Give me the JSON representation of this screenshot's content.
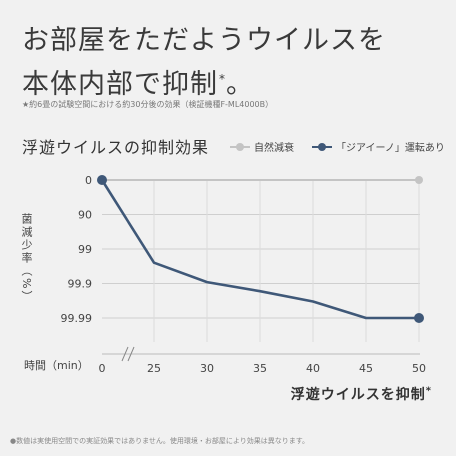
{
  "headline": {
    "line1": "お部屋をただようウイルスを",
    "line2": "本体内部で抑制",
    "line2_mark": "*",
    "line2_end": "。"
  },
  "footnote_top": "★約6畳の試験空間における約30分後の効果（検証機種F-ML4000B）",
  "chart_title": "浮遊ウイルスの抑制効果",
  "legend": [
    {
      "label": "自然減衰",
      "color": "#c4c4c4"
    },
    {
      "label": "「ジアイーノ」運転あり",
      "color": "#3f5878"
    }
  ],
  "y_axis_label": "菌減少率（%）",
  "x_axis_label": "時間（min）",
  "caption": "浮遊ウイルスを抑制",
  "caption_mark": "*",
  "footnote_bottom": "●数値は実使用空間での実証効果ではありません。使用環境・お部屋により効果は異なります。",
  "chart_data": {
    "type": "line",
    "x_ticks": [
      0,
      25,
      30,
      35,
      40,
      45,
      50
    ],
    "x_axis_break_between": [
      0,
      25
    ],
    "y_tick_labels": [
      "0",
      "90",
      "99",
      "99.9",
      "99.99"
    ],
    "y_scale": "log10 reduction",
    "series": [
      {
        "name": "自然減衰",
        "color": "#c4c4c4",
        "points": [
          {
            "x": 0,
            "y": "0"
          },
          {
            "x": 50,
            "y": "0"
          }
        ]
      },
      {
        "name": "「ジアイーノ」運転あり",
        "color": "#3f5878",
        "points": [
          {
            "x": 0,
            "y": "0"
          },
          {
            "x": 25,
            "y": "99.6"
          },
          {
            "x": 30,
            "y": "99.89"
          },
          {
            "x": 35,
            "y": "99.94"
          },
          {
            "x": 40,
            "y": "99.97"
          },
          {
            "x": 45,
            "y": "99.99"
          },
          {
            "x": 50,
            "y": "99.99"
          }
        ]
      }
    ],
    "grid": true
  }
}
